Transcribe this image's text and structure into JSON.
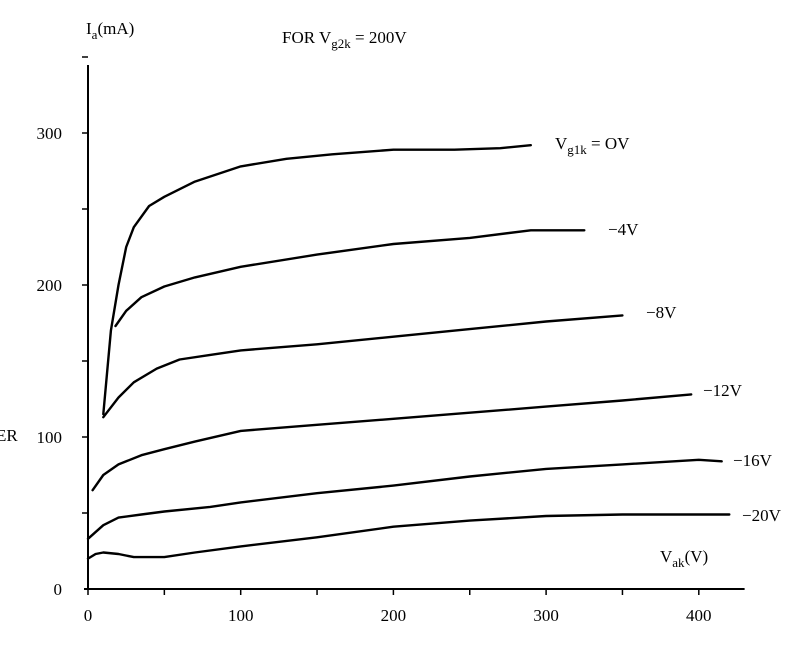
{
  "chart_data": {
    "type": "line",
    "title": "FOR V",
    "title_sub": "g2k",
    "title_tail": " = 200V",
    "ylabel": "I",
    "ylabel_sub": "a",
    "ylabel_tail": "(mA)",
    "xlabel": "V",
    "xlabel_sub": "ak",
    "xlabel_tail": "(V)",
    "side_fragment": "ER",
    "xlim": [
      0,
      430
    ],
    "ylim": [
      0,
      350
    ],
    "xticks": [
      "0",
      "100",
      "200",
      "300",
      "400"
    ],
    "xtick_values": [
      0,
      100,
      200,
      300,
      400
    ],
    "yticks": [
      "0",
      "100",
      "200",
      "300"
    ],
    "ytick_values": [
      0,
      100,
      200,
      300
    ],
    "series": [
      {
        "name_main": "V",
        "name_sub": "g1k",
        "name_tail": " = OV",
        "x": [
          10,
          15,
          20,
          25,
          30,
          40,
          50,
          70,
          100,
          130,
          160,
          200,
          240,
          270,
          290
        ],
        "y": [
          115,
          170,
          200,
          225,
          238,
          252,
          258,
          268,
          278,
          283,
          286,
          289,
          289,
          290,
          292
        ]
      },
      {
        "name_main": "",
        "name_sub": "",
        "name_tail": "−4V",
        "x": [
          18,
          25,
          35,
          50,
          70,
          100,
          150,
          200,
          250,
          290,
          325
        ],
        "y": [
          173,
          183,
          192,
          199,
          205,
          212,
          220,
          227,
          231,
          236,
          236
        ]
      },
      {
        "name_main": "",
        "name_sub": "",
        "name_tail": "−8V",
        "x": [
          10,
          20,
          30,
          45,
          60,
          80,
          100,
          150,
          200,
          250,
          300,
          350
        ],
        "y": [
          113,
          126,
          136,
          145,
          151,
          154,
          157,
          161,
          166,
          171,
          176,
          180
        ]
      },
      {
        "name_main": "",
        "name_sub": "",
        "name_tail": "−12V",
        "x": [
          3,
          10,
          20,
          35,
          50,
          70,
          100,
          150,
          200,
          250,
          300,
          350,
          395
        ],
        "y": [
          65,
          75,
          82,
          88,
          92,
          97,
          104,
          108,
          112,
          116,
          120,
          124,
          128
        ]
      },
      {
        "name_main": "",
        "name_sub": "",
        "name_tail": "−16V",
        "x": [
          0,
          10,
          20,
          35,
          50,
          80,
          100,
          150,
          200,
          250,
          300,
          350,
          400,
          415
        ],
        "y": [
          33,
          42,
          47,
          49,
          51,
          54,
          57,
          63,
          68,
          74,
          79,
          82,
          85,
          84
        ]
      },
      {
        "name_main": "",
        "name_sub": "",
        "name_tail": "−20V",
        "x": [
          0,
          5,
          10,
          20,
          30,
          50,
          70,
          100,
          150,
          200,
          250,
          300,
          350,
          400,
          420
        ],
        "y": [
          20,
          23,
          24,
          23,
          21,
          21,
          24,
          28,
          34,
          41,
          45,
          48,
          49,
          49,
          49
        ]
      }
    ],
    "grid": false,
    "legend": "inline labels at curve ends"
  }
}
